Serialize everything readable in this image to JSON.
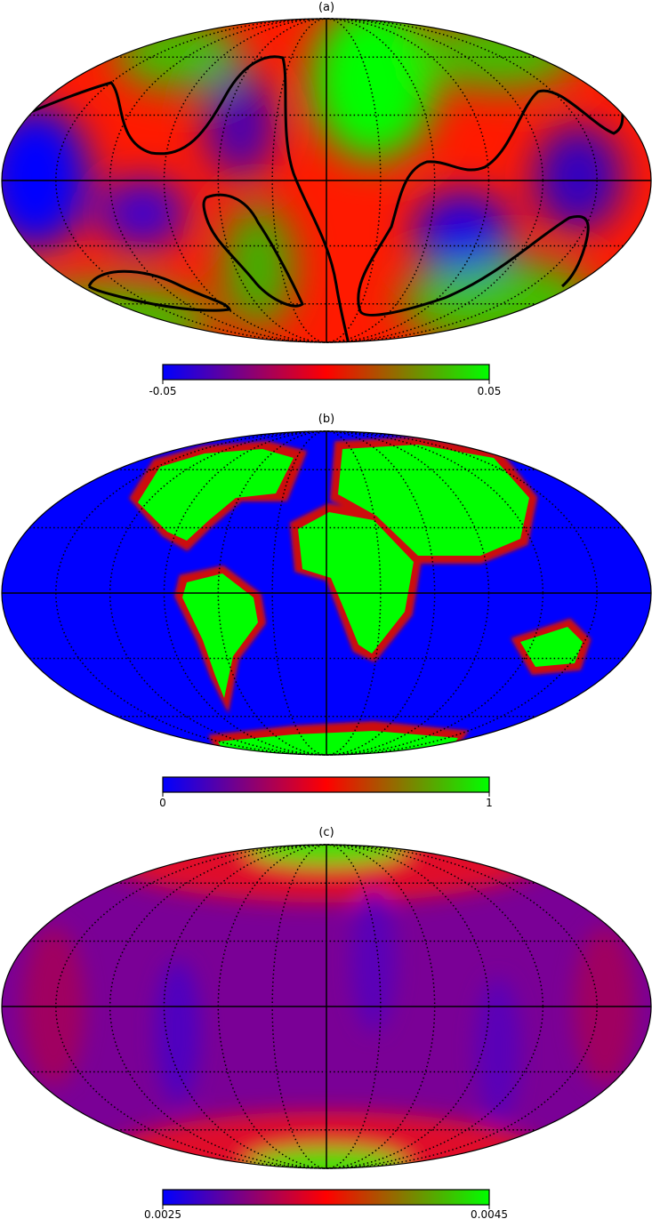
{
  "projection": "mollweide",
  "graticule": {
    "meridian_step_deg": 30,
    "parallel_step_deg": 30,
    "style": "dotted"
  },
  "colormap": [
    "#0000ff",
    "#ff0000",
    "#00ff00"
  ],
  "panels": [
    {
      "title": "(a)",
      "colorbar": {
        "min_label": "-0.05",
        "max_label": "0.05"
      },
      "contour": true
    },
    {
      "title": "(b)",
      "colorbar": {
        "min_label": "0",
        "max_label": "1"
      }
    },
    {
      "title": "(c)",
      "colorbar": {
        "min_label": "0.0025",
        "max_label": "0.0045"
      }
    }
  ]
}
